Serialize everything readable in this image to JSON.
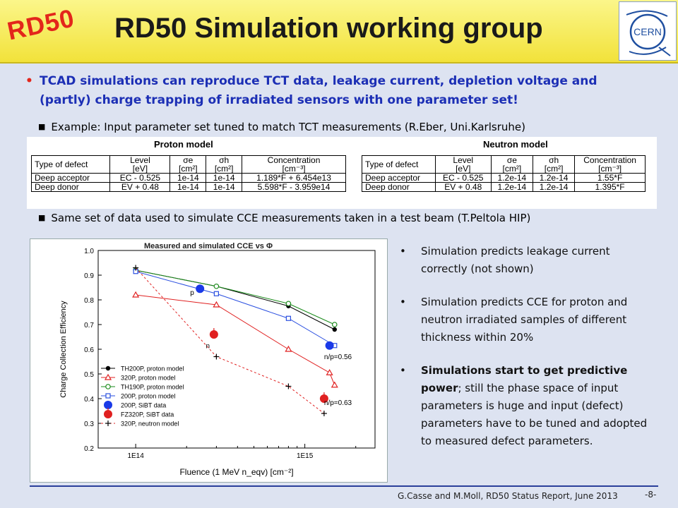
{
  "header": {
    "logo_text": "RD50",
    "title": "RD50 Simulation working group",
    "cern_logo": "CERN"
  },
  "main_bullet": "TCAD simulations can reproduce TCT data, leakage current, depletion voltage and (partly) charge trapping of irradiated sensors with one parameter set!",
  "sub_bullets": [
    "Example: Input parameter set tuned to match TCT measurements (R.Eber, Uni.Karlsruhe)",
    "Same set of data used to simulate CCE measurements taken in a test beam (T.Peltola HIP)"
  ],
  "tables": [
    {
      "title": "Proton model",
      "headers": [
        {
          "l1": "Type of defect",
          "l2": ""
        },
        {
          "l1": "Level",
          "l2": "[eV]"
        },
        {
          "l1": "σe",
          "l2": "[cm²]"
        },
        {
          "l1": "σh",
          "l2": "[cm²]"
        },
        {
          "l1": "Concentration",
          "l2": "[cm⁻³]"
        }
      ],
      "rows": [
        [
          "Deep acceptor",
          "EC - 0.525",
          "1e-14",
          "1e-14",
          "1.189*F + 6.454e13"
        ],
        [
          "Deep donor",
          "EV + 0.48",
          "1e-14",
          "1e-14",
          "5.598*F - 3.959e14"
        ]
      ]
    },
    {
      "title": "Neutron model",
      "headers": [
        {
          "l1": "Type of defect",
          "l2": ""
        },
        {
          "l1": "Level",
          "l2": "[eV]"
        },
        {
          "l1": "σe",
          "l2": "[cm²]"
        },
        {
          "l1": "σh",
          "l2": "[cm²]"
        },
        {
          "l1": "Concentration",
          "l2": "[cm⁻³]"
        }
      ],
      "rows": [
        [
          "Deep acceptor",
          "EC - 0.525",
          "1.2e-14",
          "1.2e-14",
          "1.55*F"
        ],
        [
          "Deep donor",
          "EV + 0.48",
          "1.2e-14",
          "1.2e-14",
          "1.395*F"
        ]
      ]
    }
  ],
  "right_bullets": [
    {
      "bold": "",
      "text": "Simulation predicts leakage current correctly (not shown)"
    },
    {
      "bold": "",
      "text": "Simulation predicts CCE for proton and neutron irradiated samples of different thickness within 20%"
    },
    {
      "bold": "Simulations start to get predictive power",
      "text": "; still the phase space of input parameters is huge and input (defect) parameters have to be tuned and adopted to measured defect parameters."
    }
  ],
  "footer": {
    "citation": "G.Casse and M.Moll, RD50 Status Report, June 2013",
    "page": "-8-"
  },
  "chart_data": {
    "type": "scatter",
    "title": "Measured and simulated CCE vs Φ",
    "xlabel": "Fluence (1 MeV n_eqv) [cm⁻²]",
    "ylabel": "Charge Collection Efficiency",
    "xscale": "log",
    "xlim": [
      60000000000000.0,
      2600000000000000.0
    ],
    "ylim": [
      0.2,
      1.0
    ],
    "xticks": [
      {
        "v": 100000000000000.0,
        "label": "1E14"
      },
      {
        "v": 1000000000000000.0,
        "label": "1E15"
      }
    ],
    "yticks": [
      0.2,
      0.3,
      0.4,
      0.5,
      0.6,
      0.7,
      0.8,
      0.9,
      1.0
    ],
    "series": [
      {
        "name": "TH200P,  proton model",
        "color": "#000000",
        "marker": "circle-filled",
        "line": "solid",
        "x": [
          100000000000000.0,
          300000000000000.0,
          800000000000000.0,
          1500000000000000.0
        ],
        "y": [
          0.92,
          0.855,
          0.775,
          0.68
        ]
      },
      {
        "name": "320P,  proton model",
        "color": "#e02020",
        "marker": "triangle-open",
        "line": "solid",
        "x": [
          100000000000000.0,
          300000000000000.0,
          800000000000000.0,
          1400000000000000.0,
          1500000000000000.0
        ],
        "y": [
          0.82,
          0.78,
          0.6,
          0.505,
          0.455
        ]
      },
      {
        "name": "TH190P,  proton model",
        "color": "#1a8a1a",
        "marker": "circle-open",
        "line": "solid",
        "x": [
          100000000000000.0,
          300000000000000.0,
          800000000000000.0,
          1500000000000000.0
        ],
        "y": [
          0.92,
          0.855,
          0.785,
          0.7
        ]
      },
      {
        "name": "200P, proton model",
        "color": "#2a4fe0",
        "marker": "square-open",
        "line": "solid",
        "x": [
          100000000000000.0,
          300000000000000.0,
          800000000000000.0,
          1500000000000000.0
        ],
        "y": [
          0.915,
          0.825,
          0.725,
          0.615
        ]
      },
      {
        "name": "200P, SiBT data",
        "color": "#1a3ae8",
        "marker": "circle-big",
        "line": "none",
        "x": [
          240000000000000.0,
          1400000000000000.0
        ],
        "y": [
          0.845,
          0.615
        ]
      },
      {
        "name": "FZ320P, SiBT data",
        "color": "#e02020",
        "marker": "circle-big-err",
        "line": "none",
        "x": [
          290000000000000.0,
          1300000000000000.0
        ],
        "y": [
          0.66,
          0.4
        ]
      },
      {
        "name": "320P, neutron model",
        "color": "#e02020",
        "marker": "plus",
        "line": "dashed",
        "x": [
          100000000000000.0,
          300000000000000.0,
          800000000000000.0,
          1300000000000000.0
        ],
        "y": [
          0.93,
          0.57,
          0.45,
          0.34
        ]
      }
    ],
    "annotations": [
      {
        "text": "p",
        "x": 210000000000000.0,
        "y": 0.82
      },
      {
        "text": "n",
        "x": 260000000000000.0,
        "y": 0.605
      },
      {
        "text": "n/p=0.56",
        "x": 1300000000000000.0,
        "y": 0.56
      },
      {
        "text": "n/p=0.63",
        "x": 1300000000000000.0,
        "y": 0.375
      }
    ],
    "grid": false,
    "legend": "bottom-left"
  }
}
